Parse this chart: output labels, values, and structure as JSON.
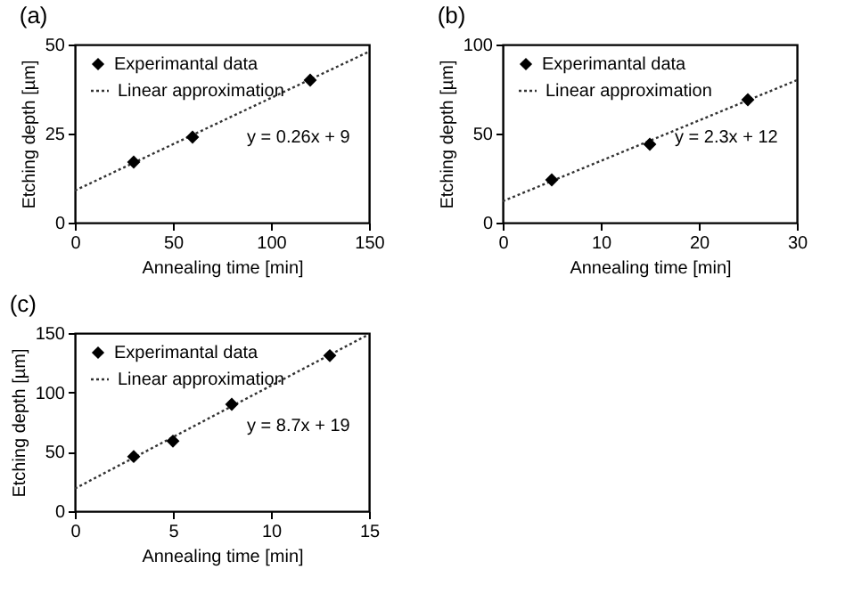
{
  "chart_data": [
    {
      "type": "scatter",
      "title": "(a)",
      "xlabel": "Annealing time [min]",
      "ylabel": "Etching depth [µm]",
      "xlim": [
        0,
        150
      ],
      "xticks": [
        0,
        50,
        100,
        150
      ],
      "ylim": [
        0,
        50
      ],
      "yticks": [
        0,
        25,
        50
      ],
      "grid": false,
      "legend": "top left",
      "annotations": [
        "y = 0.26x + 9"
      ],
      "series": [
        {
          "name": "Experimantal data",
          "color": "#000000",
          "marker": "diamond",
          "x": [
            30,
            60,
            120
          ],
          "values": [
            17,
            24,
            40
          ]
        },
        {
          "name": "Linear approximation",
          "type": "line",
          "color": "#333333",
          "line_style": "dotted",
          "x": [
            0,
            150
          ],
          "values": [
            9,
            48
          ]
        }
      ]
    },
    {
      "type": "scatter",
      "title": "(b)",
      "xlabel": "Annealing time [min]",
      "ylabel": "Etching depth [µm]",
      "xlim": [
        0,
        30
      ],
      "xticks": [
        0,
        10,
        20,
        30
      ],
      "ylim": [
        0,
        100
      ],
      "yticks": [
        0,
        50,
        100
      ],
      "grid": false,
      "legend": "top left",
      "annotations": [
        "y = 2.3x + 12"
      ],
      "series": [
        {
          "name": "Experimantal data",
          "color": "#000000",
          "marker": "diamond",
          "x": [
            5,
            15,
            25
          ],
          "values": [
            24,
            44,
            69
          ]
        },
        {
          "name": "Linear approximation",
          "type": "line",
          "color": "#333333",
          "line_style": "dotted",
          "x": [
            0,
            30
          ],
          "values": [
            12,
            80
          ]
        }
      ]
    },
    {
      "type": "scatter",
      "title": "(c)",
      "xlabel": "Annealing time [min]",
      "ylabel": "Etching depth [µm]",
      "xlim": [
        0,
        15
      ],
      "xticks": [
        0,
        5,
        10,
        15
      ],
      "ylim": [
        0,
        150
      ],
      "yticks": [
        0,
        50,
        100,
        150
      ],
      "grid": false,
      "legend": "top left",
      "annotations": [
        "y = 8.7x + 19"
      ],
      "series": [
        {
          "name": "Experimantal data",
          "color": "#000000",
          "marker": "diamond",
          "x": [
            3,
            5,
            8,
            13
          ],
          "values": [
            46,
            59,
            90,
            131
          ]
        },
        {
          "name": "Linear approximation",
          "type": "line",
          "color": "#333333",
          "line_style": "dotted",
          "x": [
            0,
            15
          ],
          "values": [
            19,
            149
          ]
        }
      ]
    }
  ]
}
